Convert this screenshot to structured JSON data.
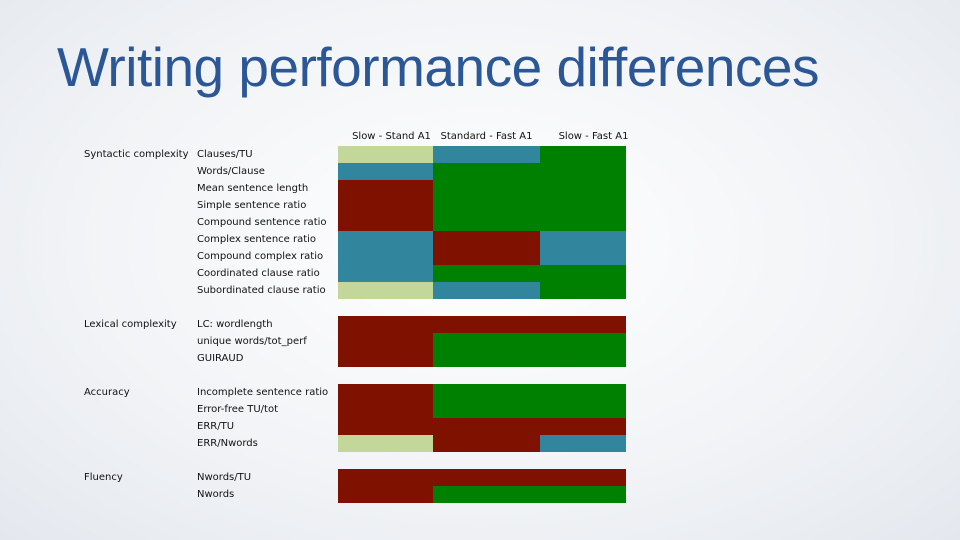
{
  "title": "Writing performance differences",
  "colors": {
    "green": "#008000",
    "red": "#7f1100",
    "blue": "#31859c",
    "light": "#c4d79b"
  },
  "columns": [
    "Slow - Stand A1",
    "Standard - Fast A1",
    "Slow - Fast A1"
  ],
  "groups": [
    {
      "label": "Syntactic complexity",
      "rows": [
        {
          "metric": "Clauses/TU",
          "cells": [
            "light",
            "blue",
            "green"
          ]
        },
        {
          "metric": "Words/Clause",
          "cells": [
            "blue",
            "green",
            "green"
          ]
        },
        {
          "metric": "Mean sentence length",
          "cells": [
            "red",
            "green",
            "green"
          ]
        },
        {
          "metric": "Simple sentence ratio",
          "cells": [
            "red",
            "green",
            "green"
          ]
        },
        {
          "metric": "Compound sentence ratio",
          "cells": [
            "red",
            "green",
            "green"
          ]
        },
        {
          "metric": "Complex sentence ratio",
          "cells": [
            "blue",
            "red",
            "blue"
          ]
        },
        {
          "metric": "Compound complex ratio",
          "cells": [
            "blue",
            "red",
            "blue"
          ]
        },
        {
          "metric": "Coordinated clause ratio",
          "cells": [
            "blue",
            "green",
            "green"
          ]
        },
        {
          "metric": "Subordinated clause ratio",
          "cells": [
            "light",
            "blue",
            "green"
          ]
        }
      ]
    },
    {
      "label": "Lexical complexity",
      "rows": [
        {
          "metric": "LC: wordlength",
          "cells": [
            "red",
            "red",
            "red"
          ]
        },
        {
          "metric": "unique words/tot_perf",
          "cells": [
            "red",
            "green",
            "green"
          ]
        },
        {
          "metric": "GUIRAUD",
          "cells": [
            "red",
            "green",
            "green"
          ]
        }
      ]
    },
    {
      "label": "Accuracy",
      "rows": [
        {
          "metric": "Incomplete sentence ratio",
          "cells": [
            "red",
            "green",
            "green"
          ]
        },
        {
          "metric": "Error-free TU/tot",
          "cells": [
            "red",
            "green",
            "green"
          ]
        },
        {
          "metric": "ERR/TU",
          "cells": [
            "red",
            "red",
            "red"
          ]
        },
        {
          "metric": "ERR/Nwords",
          "cells": [
            "light",
            "red",
            "blue"
          ]
        }
      ]
    },
    {
      "label": "Fluency",
      "rows": [
        {
          "metric": "Nwords/TU",
          "cells": [
            "red",
            "red",
            "red"
          ]
        },
        {
          "metric": "Nwords",
          "cells": [
            "red",
            "green",
            "green"
          ]
        }
      ]
    }
  ]
}
